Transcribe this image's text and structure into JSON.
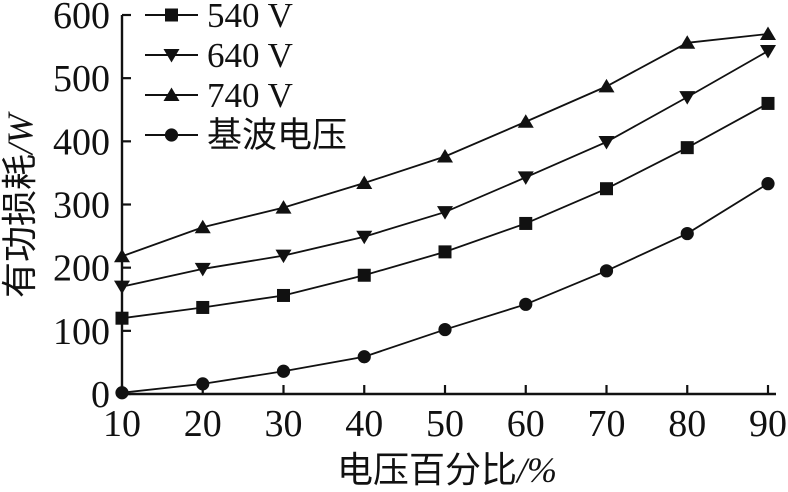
{
  "chart_data": {
    "type": "line",
    "title": "",
    "xlabel_text": "电压百分比",
    "xlabel_unit": "/%",
    "ylabel_text": "有功损耗",
    "ylabel_unit": "/W",
    "x": [
      10,
      20,
      30,
      40,
      50,
      60,
      70,
      80,
      90
    ],
    "x_ticks": [
      10,
      20,
      30,
      40,
      50,
      60,
      70,
      80,
      90
    ],
    "y_ticks": [
      0,
      100,
      200,
      300,
      400,
      500,
      600
    ],
    "xlim": [
      10,
      90
    ],
    "ylim": [
      0,
      600
    ],
    "grid": false,
    "legend_position": "top-left-inside",
    "ink_color": "#111111",
    "series": [
      {
        "name": "540 V",
        "marker": "square",
        "values": [
          120,
          137,
          156,
          188,
          225,
          270,
          325,
          390,
          460
        ]
      },
      {
        "name": "640 V",
        "marker": "triangle-down",
        "values": [
          170,
          198,
          219,
          249,
          288,
          343,
          399,
          470,
          543
        ]
      },
      {
        "name": "740 V",
        "marker": "triangle-up",
        "values": [
          218,
          264,
          295,
          334,
          376,
          431,
          487,
          556,
          570
        ]
      },
      {
        "name": "基波电压",
        "marker": "circle",
        "values": [
          2,
          16,
          36,
          59,
          102,
          142,
          195,
          254,
          333
        ]
      }
    ]
  }
}
